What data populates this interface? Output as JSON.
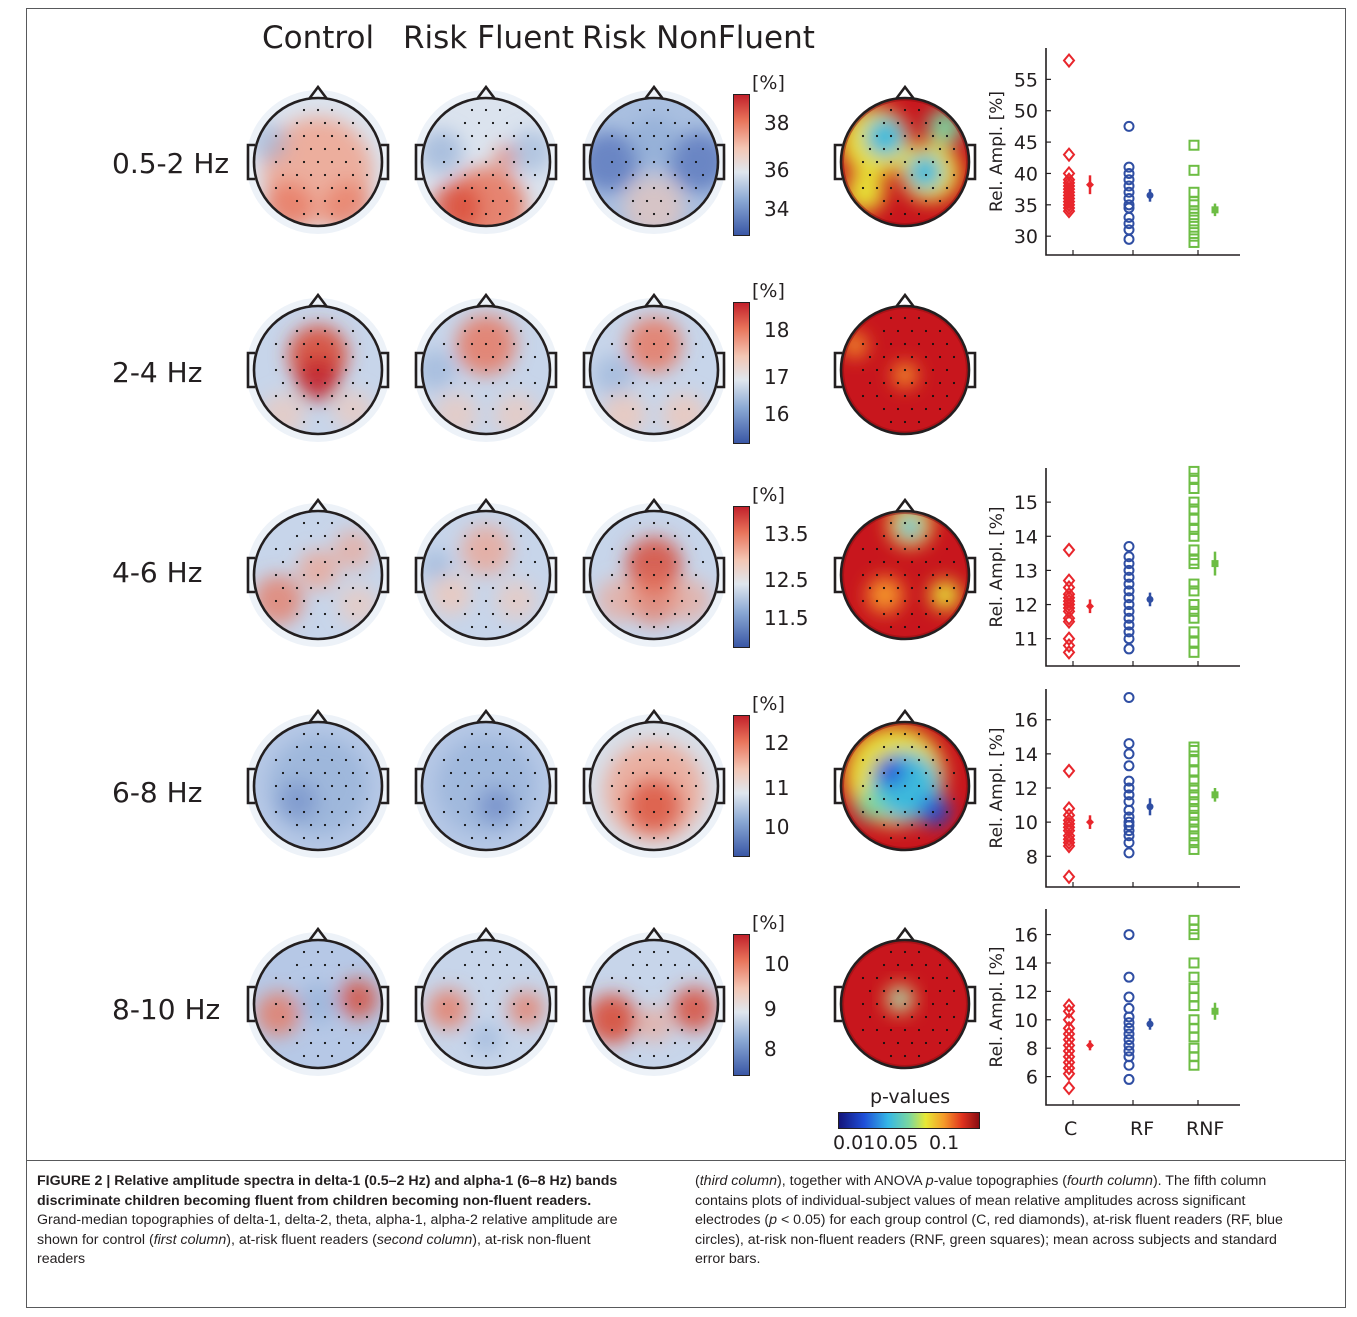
{
  "figure": {
    "column_headers": [
      "Control",
      "Risk Fluent",
      "Risk NonFluent"
    ],
    "bands": [
      "0.5-2 Hz",
      "2-4 Hz",
      "4-6 Hz",
      "6-8 Hz",
      "8-10 Hz"
    ],
    "colorbar_unit": "[%]",
    "colorbar_ticks": [
      [
        "38",
        "36",
        "34"
      ],
      [
        "18",
        "17",
        "16"
      ],
      [
        "13.5",
        "12.5",
        "11.5"
      ],
      [
        "12",
        "11",
        "10"
      ],
      [
        "10",
        "9",
        "8"
      ]
    ],
    "pvalue_title": "p-values",
    "pvalue_ticks": [
      "0.01",
      "0.05",
      "0.1"
    ],
    "colors": {
      "control": "#e8262c",
      "risk_fluent": "#2f4ea3",
      "risk_nonfluent": "#6dbd44",
      "head_outline": "#231f20"
    }
  },
  "chart_data": [
    {
      "type": "scatter",
      "band": "0.5-2 Hz",
      "ylabel": "Rel. Ampl. [%]",
      "yticks": [
        30,
        35,
        40,
        45,
        50,
        55
      ],
      "ylim": [
        27,
        60
      ],
      "categories": [
        "C",
        "RF",
        "RNF"
      ],
      "series": [
        {
          "name": "C",
          "values": [
            58,
            43,
            40,
            39,
            38.5,
            38,
            37.5,
            37,
            36.5,
            36,
            35.5,
            35,
            34.5,
            34
          ],
          "mean": 38.2,
          "sem": 1.5
        },
        {
          "name": "RF",
          "values": [
            47.5,
            41,
            40,
            39,
            38,
            37,
            36,
            35,
            34.5,
            33,
            32,
            31,
            29.5
          ],
          "mean": 36.5,
          "sem": 1.0
        },
        {
          "name": "RNF",
          "values": [
            44.5,
            40.5,
            37,
            35.5,
            35,
            34,
            33,
            32,
            31,
            30,
            29
          ],
          "mean": 34.2,
          "sem": 1.0
        }
      ]
    },
    {
      "type": "scatter",
      "band": "4-6 Hz",
      "ylabel": "Rel. Ampl. [%]",
      "yticks": [
        11,
        12,
        13,
        14,
        15
      ],
      "ylim": [
        10.2,
        16.0
      ],
      "categories": [
        "C",
        "RF",
        "RNF"
      ],
      "series": [
        {
          "name": "C",
          "values": [
            13.6,
            12.7,
            12.5,
            12.3,
            12.2,
            12.1,
            12.0,
            11.9,
            11.8,
            11.6,
            11.5,
            11.0,
            10.8,
            10.6
          ],
          "mean": 11.95,
          "sem": 0.2
        },
        {
          "name": "RF",
          "values": [
            13.7,
            13.4,
            13.2,
            13.0,
            12.8,
            12.6,
            12.4,
            12.2,
            12.0,
            11.8,
            11.6,
            11.4,
            11.2,
            11.0,
            10.7
          ],
          "mean": 12.15,
          "sem": 0.2
        },
        {
          "name": "RNF",
          "values": [
            15.9,
            15.7,
            15.4,
            15.0,
            14.8,
            14.5,
            14.2,
            14.0,
            13.6,
            13.3,
            13.2,
            12.6,
            12.4,
            12.0,
            11.8,
            11.6,
            11.2,
            10.9,
            10.6
          ],
          "mean": 13.2,
          "sem": 0.35
        }
      ]
    },
    {
      "type": "scatter",
      "band": "6-8 Hz",
      "ylabel": "Rel. Ampl. [%]",
      "yticks": [
        8,
        10,
        12,
        14,
        16
      ],
      "ylim": [
        6.2,
        17.8
      ],
      "categories": [
        "C",
        "RF",
        "RNF"
      ],
      "series": [
        {
          "name": "C",
          "values": [
            13.0,
            10.8,
            10.4,
            10.1,
            9.9,
            9.7,
            9.5,
            9.2,
            9.0,
            8.8,
            8.6,
            6.8
          ],
          "mean": 10.0,
          "sem": 0.4
        },
        {
          "name": "RF",
          "values": [
            17.3,
            14.6,
            14.0,
            13.3,
            12.4,
            12.0,
            11.6,
            11.2,
            10.7,
            10.3,
            10.0,
            9.8,
            9.5,
            9.2,
            8.8,
            8.2
          ],
          "mean": 10.9,
          "sem": 0.5
        },
        {
          "name": "RNF",
          "values": [
            14.4,
            14.2,
            13.6,
            13.0,
            12.4,
            12.0,
            11.6,
            11.2,
            10.8,
            10.4,
            10.0,
            9.6,
            9.2,
            8.8,
            8.4
          ],
          "mean": 11.6,
          "sem": 0.4
        }
      ]
    },
    {
      "type": "scatter",
      "band": "8-10 Hz",
      "ylabel": "Rel. Ampl. [%]",
      "yticks": [
        6,
        8,
        10,
        12,
        14,
        16
      ],
      "ylim": [
        4.0,
        17.8
      ],
      "categories": [
        "C",
        "RF",
        "RNF"
      ],
      "series": [
        {
          "name": "C",
          "values": [
            11.0,
            10.6,
            10.0,
            9.4,
            9.0,
            8.6,
            8.2,
            7.8,
            7.4,
            7.0,
            6.6,
            6.2,
            5.2
          ],
          "mean": 8.2,
          "sem": 0.35
        },
        {
          "name": "RF",
          "values": [
            16.0,
            13.0,
            11.6,
            10.8,
            10.2,
            9.8,
            9.4,
            9.0,
            8.6,
            8.2,
            7.8,
            7.4,
            6.8,
            5.8
          ],
          "mean": 9.7,
          "sem": 0.4
        },
        {
          "name": "RNF",
          "values": [
            17.0,
            16.4,
            16.0,
            14.0,
            13.0,
            12.2,
            11.6,
            11.0,
            10.0,
            9.4,
            8.8,
            8.0,
            7.4,
            6.8
          ],
          "mean": 10.6,
          "sem": 0.6
        }
      ]
    }
  ],
  "caption": {
    "fig_label": "FIGURE 2 | Relative amplitude spectra in delta-1 (0.5–2 Hz) and alpha-1 (6–8 Hz) bands discriminate children becoming fluent from children becoming non-fluent readers.",
    "left_rest_1": " Grand-median topographies of delta-1, delta-2, theta, alpha-1, alpha-2 relative amplitude are shown for control (",
    "left_em_1": "first column",
    "left_rest_2": "), at-risk fluent readers (",
    "left_em_2": "second column",
    "left_rest_3": "), at-risk non-fluent readers",
    "right_p1": "(",
    "right_em_1": "third column",
    "right_p2": "), together with ANOVA ",
    "right_em_p": "p",
    "right_p3": "-value topographies (",
    "right_em_2": "fourth column",
    "right_p4": "). The fifth column contains plots of individual-subject values of mean relative amplitudes across significant electrodes (",
    "right_em_p2": "p",
    "right_p5": " < 0.05) for each group control (C, red diamonds), at-risk fluent readers (RF, blue circles), at-risk non-fluent readers (RNF, green squares); mean across subjects and standard error bars."
  }
}
